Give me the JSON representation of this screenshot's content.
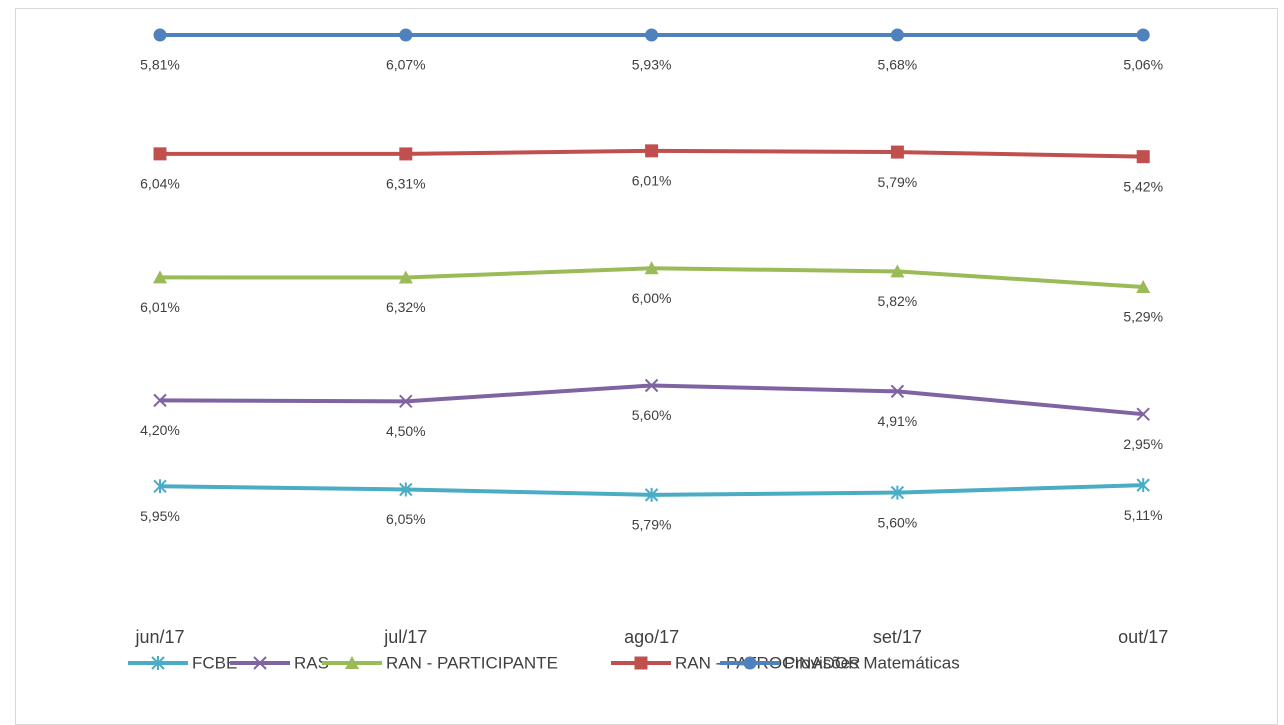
{
  "chart_data": {
    "type": "line",
    "stacking": "percent",
    "ylim": [
      0,
      100
    ],
    "categories": [
      "jun/17",
      "jul/17",
      "ago/17",
      "set/17",
      "out/17"
    ],
    "series": [
      {
        "name": "FCBE",
        "color": "#4bacc6",
        "marker": "star",
        "values": [
          5.95,
          6.05,
          5.79,
          5.6,
          5.11
        ],
        "value_labels": [
          "5,95%",
          "6,05%",
          "5,79%",
          "5,60%",
          "5,11%"
        ]
      },
      {
        "name": "RAS",
        "color": "#8064a2",
        "marker": "x",
        "values": [
          4.2,
          4.5,
          5.6,
          4.91,
          2.95
        ],
        "value_labels": [
          "4,20%",
          "4,50%",
          "5,60%",
          "4,91%",
          "2,95%"
        ]
      },
      {
        "name": "RAN - PARTICIPANTE",
        "color": "#9bbb59",
        "marker": "triangle",
        "values": [
          6.01,
          6.32,
          6.0,
          5.82,
          5.29
        ],
        "value_labels": [
          "6,01%",
          "6,32%",
          "6,00%",
          "5,82%",
          "5,29%"
        ]
      },
      {
        "name": "RAN - PATROCINADOR",
        "color": "#c0504d",
        "marker": "square",
        "values": [
          6.04,
          6.31,
          6.01,
          5.79,
          5.42
        ],
        "value_labels": [
          "6,04%",
          "6,31%",
          "6,01%",
          "5,79%",
          "5,42%"
        ]
      },
      {
        "name": "Provisões Matemáticas",
        "color": "#4f81bd",
        "marker": "circle",
        "values": [
          5.81,
          6.07,
          5.93,
          5.68,
          5.06
        ],
        "value_labels": [
          "5,81%",
          "6,07%",
          "5,93%",
          "5,68%",
          "5,06%"
        ]
      }
    ]
  }
}
